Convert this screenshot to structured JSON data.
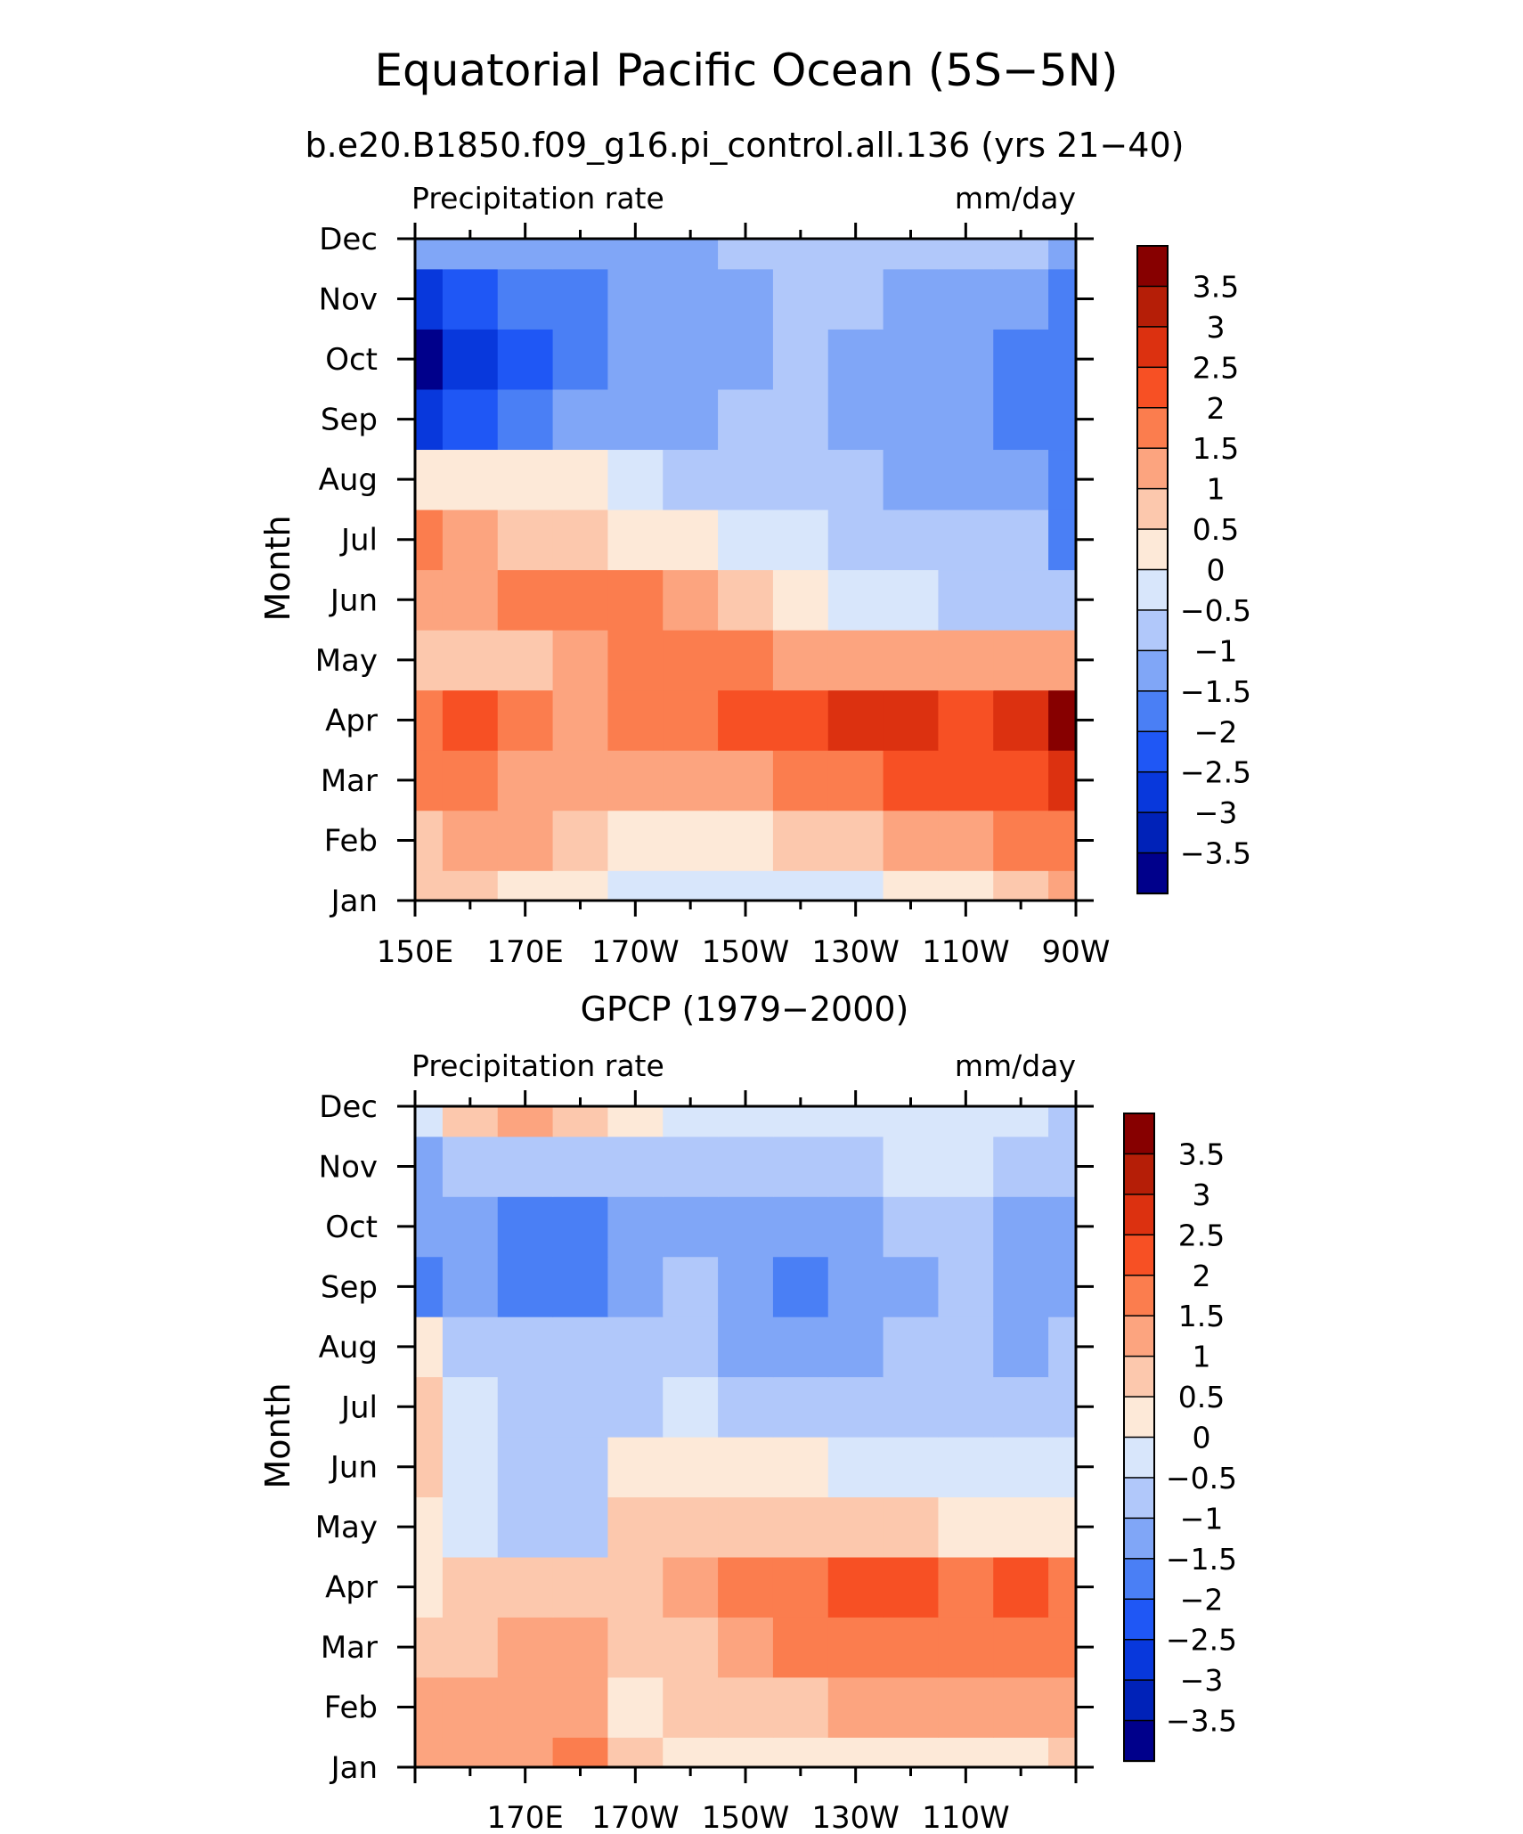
{
  "figure": {
    "title": "Equatorial Pacific Ocean (5S−5N)"
  },
  "chart_data": [
    {
      "type": "heatmap",
      "title": "b.e20.B1850.f09_g16.pi_control.all.136 (yrs 21−40)",
      "left_string": "Precipitation rate",
      "right_string": "mm/day",
      "ylabel": "Month",
      "x": [
        "150E",
        "160E",
        "170E",
        "180",
        "170W",
        "160W",
        "150W",
        "140W",
        "130W",
        "120W",
        "110W",
        "100W",
        "90W"
      ],
      "x_tick_labels": [
        "150E",
        "170E",
        "170W",
        "150W",
        "130W",
        "110W",
        "90W"
      ],
      "y": [
        "Jan",
        "Feb",
        "Mar",
        "Apr",
        "May",
        "Jun",
        "Jul",
        "Aug",
        "Sep",
        "Oct",
        "Nov",
        "Dec"
      ],
      "values": [
        [
          0.5,
          0.5,
          0.3,
          0.2,
          -0.2,
          -0.3,
          -0.3,
          -0.2,
          -0.1,
          0.2,
          0.3,
          0.6,
          1.0
        ],
        [
          0.8,
          1.0,
          1.0,
          0.6,
          0.3,
          0.3,
          0.4,
          0.6,
          0.9,
          1.1,
          1.3,
          1.6,
          1.6
        ],
        [
          1.7,
          1.6,
          1.4,
          1.1,
          1.1,
          1.2,
          1.4,
          1.6,
          1.9,
          2.1,
          2.2,
          2.4,
          2.8
        ],
        [
          1.8,
          2.0,
          1.7,
          1.3,
          1.7,
          1.8,
          2.1,
          2.3,
          2.5,
          2.6,
          2.3,
          2.7,
          3.6
        ],
        [
          0.6,
          0.5,
          0.8,
          1.4,
          1.6,
          1.6,
          1.5,
          1.4,
          1.4,
          1.3,
          1.2,
          1.1,
          1.2
        ],
        [
          1.3,
          1.1,
          1.5,
          1.6,
          1.5,
          1.2,
          0.8,
          0.3,
          -0.2,
          -0.5,
          -0.6,
          -0.7,
          -0.9
        ],
        [
          1.6,
          1.2,
          0.9,
          0.6,
          0.3,
          0.1,
          -0.2,
          -0.5,
          -0.7,
          -0.8,
          -0.9,
          -1.0,
          -1.6
        ],
        [
          0.4,
          0.3,
          0.2,
          0.1,
          -0.3,
          -0.6,
          -0.8,
          -0.9,
          -1.0,
          -1.1,
          -1.3,
          -1.5,
          -1.7
        ],
        [
          -2.6,
          -2.4,
          -2.0,
          -1.5,
          -1.2,
          -1.1,
          -1.0,
          -1.0,
          -1.1,
          -1.3,
          -1.5,
          -1.7,
          -1.7
        ],
        [
          -3.6,
          -3.0,
          -2.4,
          -1.8,
          -1.3,
          -1.2,
          -1.1,
          -1.0,
          -1.1,
          -1.4,
          -1.5,
          -1.6,
          -1.8
        ],
        [
          -2.7,
          -2.3,
          -2.0,
          -1.7,
          -1.2,
          -1.1,
          -1.1,
          -0.9,
          -1.0,
          -1.3,
          -1.4,
          -1.5,
          -1.6
        ],
        [
          -1.5,
          -1.4,
          -1.3,
          -1.2,
          -1.1,
          -1.1,
          -1.0,
          -0.8,
          -0.7,
          -0.8,
          -0.9,
          -1.0,
          -1.1
        ]
      ],
      "levels": [
        -3.5,
        -3,
        -2.5,
        -2,
        -1.5,
        -1,
        -0.5,
        0,
        0.5,
        1,
        1.5,
        2,
        2.5,
        3,
        3.5
      ],
      "level_labels": [
        "3.5",
        "3",
        "2.5",
        "2",
        "1.5",
        "1",
        "0.5",
        "0",
        "−0.5",
        "−1",
        "−1.5",
        "−2",
        "−2.5",
        "−3",
        "−3.5"
      ],
      "colors": [
        "#00008b",
        "#0022b8",
        "#0838dc",
        "#1f57f5",
        "#4a7ff5",
        "#80a6f7",
        "#b1c8fa",
        "#d8e6fb",
        "#fde9d8",
        "#fcc8ad",
        "#fca47f",
        "#fb7d4e",
        "#f75024",
        "#dc3110",
        "#b51e07",
        "#870000"
      ],
      "grid": false,
      "legend_position": "right"
    },
    {
      "type": "heatmap",
      "title": "GPCP (1979−2000)",
      "left_string": "Precipitation rate",
      "right_string": "mm/day",
      "ylabel": "Month",
      "x": [
        "150E",
        "160E",
        "170E",
        "180",
        "170W",
        "160W",
        "150W",
        "140W",
        "130W",
        "120W",
        "110W",
        "100W",
        "90W"
      ],
      "x_tick_labels": [
        "170E",
        "170W",
        "150W",
        "130W",
        "110W"
      ],
      "y": [
        "Jan",
        "Feb",
        "Mar",
        "Apr",
        "May",
        "Jun",
        "Jul",
        "Aug",
        "Sep",
        "Oct",
        "Nov",
        "Dec"
      ],
      "values": [
        [
          1.0,
          1.1,
          1.3,
          1.7,
          0.7,
          0.3,
          0.2,
          0.1,
          0.0,
          0.0,
          0.1,
          0.2,
          0.7
        ],
        [
          1.2,
          1.2,
          1.3,
          1.1,
          0.3,
          0.5,
          0.8,
          0.9,
          1.0,
          1.0,
          1.0,
          1.0,
          1.3
        ],
        [
          0.8,
          0.9,
          1.1,
          1.1,
          0.6,
          0.9,
          1.3,
          1.5,
          1.8,
          1.9,
          1.6,
          1.7,
          1.5
        ],
        [
          0.3,
          0.7,
          0.9,
          0.8,
          0.8,
          1.1,
          1.6,
          1.8,
          2.1,
          2.0,
          1.6,
          2.1,
          1.6
        ],
        [
          0.2,
          -0.3,
          -0.6,
          -0.7,
          0.5,
          0.6,
          0.8,
          0.7,
          0.6,
          0.5,
          0.3,
          0.1,
          0.0
        ],
        [
          0.6,
          -0.4,
          -0.7,
          -0.6,
          0.1,
          0.2,
          0.2,
          0.0,
          -0.2,
          -0.4,
          -0.4,
          -0.3,
          -0.3
        ],
        [
          0.6,
          -0.5,
          -0.9,
          -0.9,
          -0.6,
          -0.4,
          -0.6,
          -0.8,
          -0.9,
          -0.9,
          -0.9,
          -1.0,
          -0.8
        ],
        [
          0.4,
          -0.6,
          -1.0,
          -0.8,
          -0.7,
          -0.9,
          -1.2,
          -1.1,
          -1.1,
          -0.9,
          -0.9,
          -1.3,
          -1.0
        ],
        [
          -1.6,
          -1.3,
          -1.7,
          -1.9,
          -1.4,
          -1.0,
          -1.4,
          -1.6,
          -1.5,
          -1.2,
          -0.9,
          -1.3,
          -1.4
        ],
        [
          -1.2,
          -1.4,
          -1.7,
          -1.8,
          -1.3,
          -1.1,
          -1.3,
          -1.4,
          -1.3,
          -1.0,
          -0.8,
          -1.1,
          -1.3
        ],
        [
          -1.1,
          -0.9,
          -0.9,
          -0.9,
          -0.8,
          -0.6,
          -0.6,
          -0.7,
          -0.6,
          -0.5,
          -0.5,
          -0.7,
          -1.0
        ],
        [
          -0.3,
          0.5,
          1.4,
          0.9,
          0.4,
          -0.2,
          -0.5,
          -0.5,
          -0.4,
          -0.4,
          -0.4,
          -0.5,
          -0.6
        ]
      ],
      "levels": [
        -3.5,
        -3,
        -2.5,
        -2,
        -1.5,
        -1,
        -0.5,
        0,
        0.5,
        1,
        1.5,
        2,
        2.5,
        3,
        3.5
      ],
      "level_labels": [
        "3.5",
        "3",
        "2.5",
        "2",
        "1.5",
        "1",
        "0.5",
        "0",
        "−0.5",
        "−1",
        "−1.5",
        "−2",
        "−2.5",
        "−3",
        "−3.5"
      ],
      "colors": [
        "#00008b",
        "#0022b8",
        "#0838dc",
        "#1f57f5",
        "#4a7ff5",
        "#80a6f7",
        "#b1c8fa",
        "#d8e6fb",
        "#fde9d8",
        "#fcc8ad",
        "#fca47f",
        "#fb7d4e",
        "#f75024",
        "#dc3110",
        "#b51e07",
        "#870000"
      ],
      "grid": false,
      "legend_position": "right"
    }
  ]
}
